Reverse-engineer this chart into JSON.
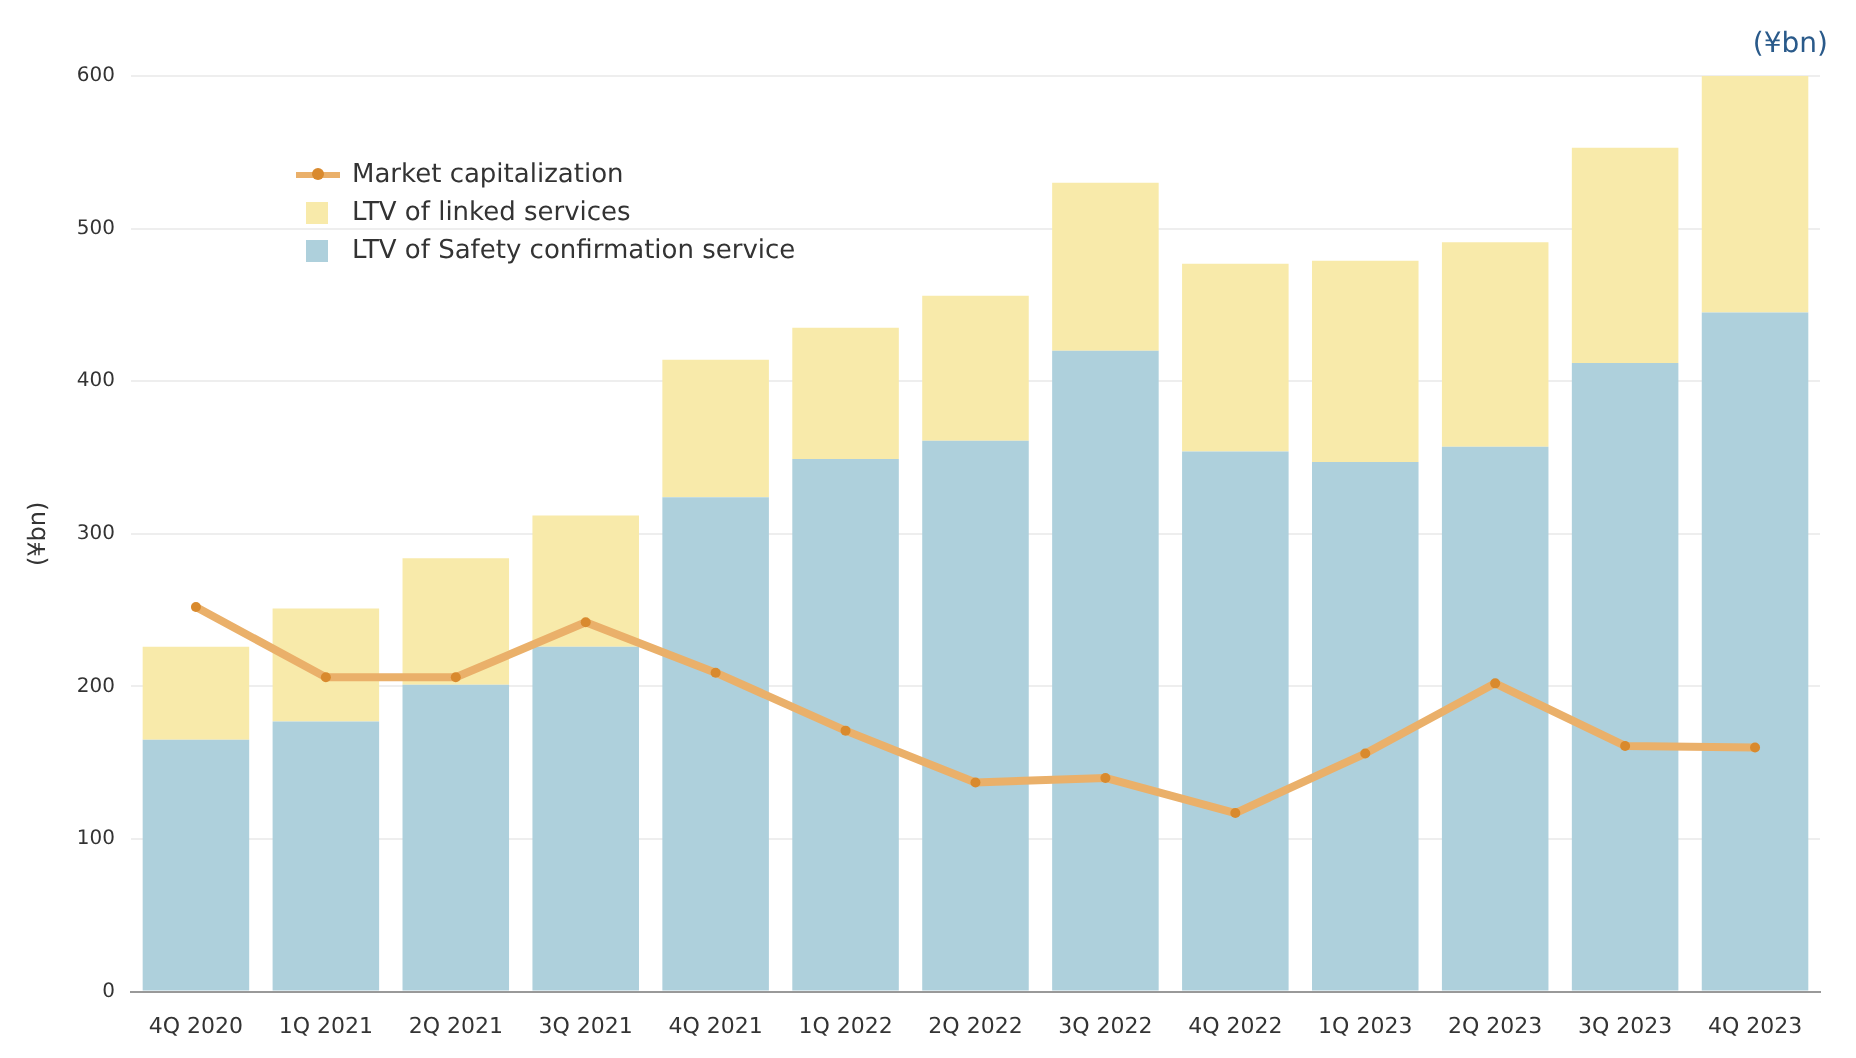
{
  "chart_data": {
    "type": "bar",
    "stacked": true,
    "ylabel": "(¥bn)",
    "annotations": [
      "(¥bn)"
    ],
    "categories": [
      "4Q 2020",
      "1Q 2021",
      "2Q 2021",
      "3Q 2021",
      "4Q 2021",
      "1Q 2022",
      "2Q 2022",
      "3Q 2022",
      "4Q 2022",
      "1Q 2023",
      "2Q 2023",
      "3Q 2023",
      "4Q 2023"
    ],
    "series": [
      {
        "name": "LTV of Safety confirmation service",
        "color": "#aed0dc",
        "values": [
          165,
          177,
          201,
          226,
          324,
          349,
          361,
          420,
          354,
          347,
          357,
          412,
          445
        ]
      },
      {
        "name": "LTV of linked services",
        "color": "#f8eaaa",
        "values": [
          61,
          74,
          83,
          86,
          90,
          86,
          95,
          110,
          123,
          132,
          134,
          141,
          155
        ]
      },
      {
        "name": "Market capitalization",
        "type": "line",
        "color": "#eab06a",
        "values": [
          252,
          206,
          206,
          242,
          209,
          171,
          137,
          140,
          117,
          156,
          202,
          161,
          160
        ]
      }
    ],
    "ylim": [
      0,
      600
    ],
    "yticks": [
      0,
      100,
      200,
      300,
      400,
      500,
      600
    ],
    "grid": "y",
    "legend": "top left",
    "marker": "circle",
    "line_style": "solid"
  }
}
